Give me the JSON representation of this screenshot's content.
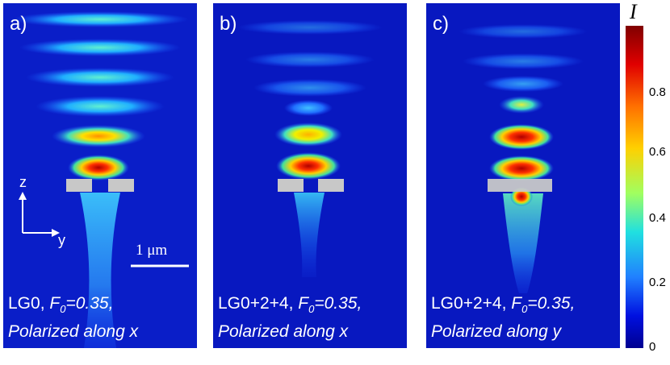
{
  "panels": [
    {
      "label": "a)",
      "caption_line1_prefix": "LG0, ",
      "caption_F": "F",
      "caption_sub": "0",
      "caption_value": "=0.35,",
      "caption_line2": "Polarized along x"
    },
    {
      "label": "b)",
      "caption_line1_prefix": "LG0+2+4, ",
      "caption_F": "F",
      "caption_sub": "0",
      "caption_value": "=0.35,",
      "caption_line2": "Polarized along x"
    },
    {
      "label": "c)",
      "caption_line1_prefix": "LG0+2+4, ",
      "caption_F": "F",
      "caption_sub": "0",
      "caption_value": "=0.35,",
      "caption_line2": "Polarized along y"
    }
  ],
  "axes": {
    "z": "z",
    "y": "y"
  },
  "scalebar": "1 μm",
  "colorbar": {
    "title": "I",
    "ticks": [
      "0.8",
      "0.6",
      "0.4",
      "0.2",
      "0"
    ]
  }
}
